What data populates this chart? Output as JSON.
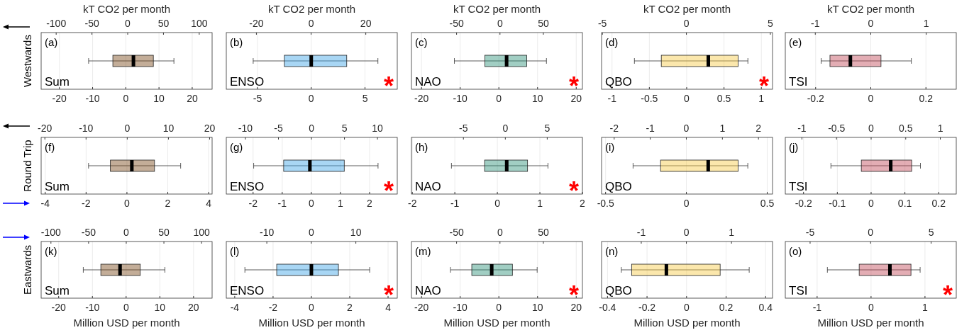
{
  "chart_data": [
    {
      "type": "box",
      "orientation": "horizontal",
      "categories": [
        null
      ],
      "color": "#7b4a1a",
      "xlim": [
        -25.5,
        26
      ],
      "xticks": [
        -20,
        -10,
        0,
        10,
        20
      ],
      "x2lim": [
        -121,
        118
      ],
      "x2ticks": [
        -100,
        -50,
        0,
        50,
        100
      ],
      "x2label": "kT CO2 per month",
      "ylabel": "Westwards",
      "grid": "x",
      "annotations": [
        "(a)",
        "Sum"
      ],
      "boxes": [
        {
          "low": -11.2,
          "q1": -3.9,
          "median": 2.3,
          "q3": 8.3,
          "high": 14.5
        }
      ]
    },
    {
      "type": "box",
      "orientation": "horizontal",
      "categories": [
        null
      ],
      "color": "#3fa3e6",
      "xlim": [
        -7.9,
        8
      ],
      "xticks": [
        -5,
        0,
        5
      ],
      "x2lim": [
        -31,
        31.5
      ],
      "x2ticks": [
        -20,
        0,
        20
      ],
      "x2label": "kT CO2 per month",
      "grid": "x",
      "annotations": [
        "(b)",
        "ENSO",
        "*"
      ],
      "boxes": [
        {
          "low": -5.4,
          "q1": -2.5,
          "median": 0,
          "q3": 3.3,
          "high": 6.2
        }
      ]
    },
    {
      "type": "box",
      "orientation": "horizontal",
      "categories": [
        null
      ],
      "color": "#2e937a",
      "xlim": [
        -22.6,
        21.6
      ],
      "xticks": [
        -20,
        -10,
        0,
        10,
        20
      ],
      "x2lim": [
        -102,
        95
      ],
      "x2ticks": [
        -50,
        0,
        50
      ],
      "x2label": "kT CO2 per month",
      "grid": "x",
      "annotations": [
        "(c)",
        "NAO",
        "*"
      ],
      "boxes": [
        {
          "low": -11.5,
          "q1": -3.6,
          "median": 2,
          "q3": 7.2,
          "high": 12.3
        }
      ]
    },
    {
      "type": "box",
      "orientation": "horizontal",
      "categories": [
        null
      ],
      "color": "#f7c948",
      "xlim": [
        -1.14,
        1.15
      ],
      "xticks": [
        -1,
        -0.5,
        0,
        0.5,
        1
      ],
      "x2lim": [
        -5.05,
        5.13
      ],
      "x2ticks": [
        -5,
        0,
        5
      ],
      "x2label": "kT CO2 per month",
      "grid": "x",
      "annotations": [
        "(d)",
        "QBO",
        "*"
      ],
      "boxes": [
        {
          "low": -0.7,
          "q1": -0.34,
          "median": 0.29,
          "q3": 0.69,
          "high": 0.82
        }
      ]
    },
    {
      "type": "box",
      "orientation": "horizontal",
      "categories": [
        null
      ],
      "color": "#c24a58",
      "xlim": [
        -0.31,
        0.31
      ],
      "xticks": [
        -0.2,
        0,
        0.2
      ],
      "x2lim": [
        -1.54,
        1.54
      ],
      "x2ticks": [
        -1,
        0,
        1
      ],
      "x2label": "kT CO2 per month",
      "grid": "x",
      "annotations": [
        "(e)",
        "TSI"
      ],
      "boxes": [
        {
          "low": -0.18,
          "q1": -0.148,
          "median": -0.074,
          "q3": 0.037,
          "high": 0.147
        }
      ]
    },
    {
      "type": "box",
      "orientation": "horizontal",
      "categories": [
        null
      ],
      "color": "#7b4a1a",
      "xlim": [
        -4.2,
        4.17
      ],
      "xticks": [
        -4,
        -2,
        0,
        2,
        4
      ],
      "x2lim": [
        -20.9,
        20.6
      ],
      "x2ticks": [
        -20,
        -10,
        0,
        10,
        20
      ],
      "ylabel": "Round Trip",
      "grid": "x",
      "annotations": [
        "(f)",
        "Sum"
      ],
      "boxes": [
        {
          "low": -1.88,
          "q1": -0.81,
          "median": 0.24,
          "q3": 1.35,
          "high": 2.63
        }
      ]
    },
    {
      "type": "box",
      "orientation": "horizontal",
      "categories": [
        null
      ],
      "color": "#3fa3e6",
      "xlim": [
        -2.92,
        2.95
      ],
      "xticks": [
        -2,
        -1,
        0,
        1,
        2
      ],
      "x2lim": [
        -12.9,
        13
      ],
      "x2ticks": [
        -10,
        -5,
        0,
        5,
        10
      ],
      "grid": "x",
      "annotations": [
        "(g)",
        "ENSO",
        "*"
      ],
      "boxes": [
        {
          "low": -1.98,
          "q1": -0.95,
          "median": -0.05,
          "q3": 1.13,
          "high": 2.29
        }
      ]
    },
    {
      "type": "box",
      "orientation": "horizontal",
      "categories": [
        null
      ],
      "color": "#2e937a",
      "xlim": [
        -2.02,
        2
      ],
      "xticks": [
        -2,
        -1,
        0,
        1,
        2
      ],
      "x2lim": [
        -11.2,
        9.2
      ],
      "x2ticks": [
        -5,
        0,
        5
      ],
      "grid": "x",
      "annotations": [
        "(h)",
        "NAO",
        "*"
      ],
      "boxes": [
        {
          "low": -1.08,
          "q1": -0.3,
          "median": 0.22,
          "q3": 0.71,
          "high": 1.19
        }
      ]
    },
    {
      "type": "box",
      "orientation": "horizontal",
      "categories": [
        null
      ],
      "color": "#f7c948",
      "xlim": [
        -0.525,
        0.533
      ],
      "xticks": [
        -0.5,
        0,
        0.5
      ],
      "x2lim": [
        -2.35,
        2.39
      ],
      "x2ticks": [
        -2,
        -1,
        0,
        1,
        2
      ],
      "grid": "x",
      "annotations": [
        "(i)",
        "QBO"
      ],
      "boxes": [
        {
          "low": -0.33,
          "q1": -0.16,
          "median": 0.135,
          "q3": 0.32,
          "high": 0.38
        }
      ]
    },
    {
      "type": "box",
      "orientation": "horizontal",
      "categories": [
        null
      ],
      "color": "#c24a58",
      "xlim": [
        -0.254,
        0.252
      ],
      "xticks": [
        -0.2,
        -0.1,
        0,
        0.1,
        0.2
      ],
      "x2lim": [
        -1.24,
        1.23
      ],
      "x2ticks": [
        -1,
        -0.5,
        0,
        0.5,
        1
      ],
      "grid": "x",
      "annotations": [
        "(j)",
        "TSI"
      ],
      "boxes": [
        {
          "low": -0.119,
          "q1": -0.029,
          "median": 0.058,
          "q3": 0.12,
          "high": 0.146
        }
      ]
    },
    {
      "type": "box",
      "orientation": "horizontal",
      "categories": [
        null
      ],
      "color": "#7b4a1a",
      "xlim": [
        -25.2,
        25.5
      ],
      "xticks": [
        -20,
        -10,
        0,
        10,
        20
      ],
      "x2lim": [
        -113,
        114
      ],
      "x2ticks": [
        -100,
        -50,
        0,
        50,
        100
      ],
      "xlabel": "Million USD per month",
      "ylabel": "Eastwards",
      "grid": "x",
      "annotations": [
        "(k)",
        "Sum"
      ],
      "boxes": [
        {
          "low": -12.7,
          "q1": -7.5,
          "median": -1.8,
          "q3": 4.2,
          "high": 11.5
        }
      ]
    },
    {
      "type": "box",
      "orientation": "horizontal",
      "categories": [
        null
      ],
      "color": "#3fa3e6",
      "xlim": [
        -4.44,
        4.48
      ],
      "xticks": [
        -4,
        -2,
        0,
        2,
        4
      ],
      "x2lim": [
        -19.1,
        19.3
      ],
      "x2ticks": [
        -10,
        0,
        10
      ],
      "xlabel": "Million USD per month",
      "grid": "x",
      "annotations": [
        "(l)",
        "ENSO",
        "*"
      ],
      "boxes": [
        {
          "low": -3.47,
          "q1": -1.81,
          "median": 0,
          "q3": 1.41,
          "high": 3.04
        }
      ]
    },
    {
      "type": "box",
      "orientation": "horizontal",
      "categories": [
        null
      ],
      "color": "#2e937a",
      "xlim": [
        -22.6,
        21.6
      ],
      "xticks": [
        -20,
        -10,
        0,
        10,
        20
      ],
      "x2lim": [
        -102,
        95
      ],
      "x2ticks": [
        -50,
        0,
        50
      ],
      "xlabel": "Million USD per month",
      "grid": "x",
      "annotations": [
        "(m)",
        "NAO",
        "*"
      ],
      "boxes": [
        {
          "low": -12.5,
          "q1": -7,
          "median": -1.85,
          "q3": 3.5,
          "high": 9.9
        }
      ]
    },
    {
      "type": "box",
      "orientation": "horizontal",
      "categories": [
        null
      ],
      "color": "#f7c948",
      "xlim": [
        -0.43,
        0.435
      ],
      "xticks": [
        -0.4,
        -0.2,
        0,
        0.2,
        0.4
      ],
      "x2lim": [
        -1.88,
        1.91
      ],
      "x2ticks": [
        -1,
        0,
        1
      ],
      "xlabel": "Million USD per month",
      "grid": "x",
      "annotations": [
        "(n)",
        "QBO"
      ],
      "boxes": [
        {
          "low": -0.33,
          "q1": -0.278,
          "median": -0.102,
          "q3": 0.17,
          "high": 0.317
        }
      ]
    },
    {
      "type": "box",
      "orientation": "horizontal",
      "categories": [
        null
      ],
      "color": "#c24a58",
      "xlim": [
        -1.59,
        1.58
      ],
      "xticks": [
        -1,
        0,
        1
      ],
      "x2lim": [
        -7.05,
        7.08
      ],
      "x2ticks": [
        -5,
        0,
        5
      ],
      "xlabel": "Million USD per month",
      "grid": "x",
      "annotations": [
        "(o)",
        "TSI",
        "*"
      ],
      "boxes": [
        {
          "low": -0.81,
          "q1": -0.22,
          "median": 0.35,
          "q3": 0.74,
          "high": 0.91
        }
      ]
    }
  ]
}
